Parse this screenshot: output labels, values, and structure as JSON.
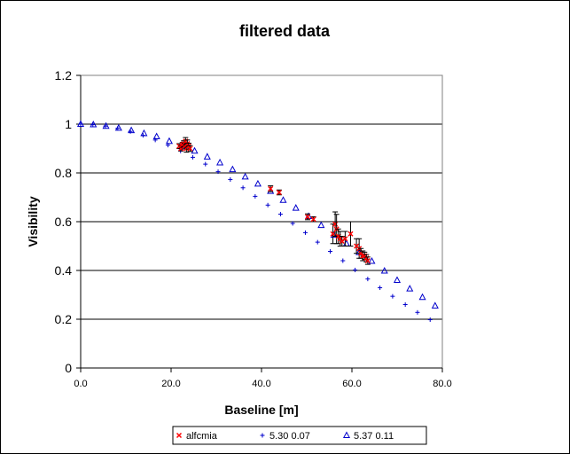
{
  "chart_data": {
    "type": "scatter",
    "title": "filtered data",
    "xlabel": "Baseline [m]",
    "ylabel": "Visibility",
    "xlim": [
      0,
      80
    ],
    "ylim": [
      0,
      1.2
    ],
    "xticks": [
      "0.0",
      "20.0",
      "40.0",
      "60.0",
      "80.0"
    ],
    "xtick_values": [
      0,
      20,
      40,
      60,
      80
    ],
    "yticks": [
      "0",
      "0.2",
      "0.4",
      "0.6",
      "0.8",
      "1",
      "1.2"
    ],
    "ytick_values": [
      0,
      0.2,
      0.4,
      0.6,
      0.8,
      1.0,
      1.2
    ],
    "grid": "horizontal",
    "legend": "bottom",
    "series": [
      {
        "name": "alfcmia",
        "marker": "x",
        "color": "#ff0000",
        "x": [
          21.8,
          22.2,
          22.5,
          22.8,
          23.0,
          23.2,
          23.4,
          23.6,
          23.9,
          24.2,
          42.0,
          43.9,
          50.2,
          51.5,
          55.8,
          56.3,
          56.6,
          57.0,
          57.4,
          57.8,
          58.5,
          59.7,
          61.0,
          61.6,
          62.0,
          62.4,
          62.8,
          63.2,
          63.5
        ],
        "y": [
          0.91,
          0.9,
          0.915,
          0.92,
          0.91,
          0.93,
          0.9,
          0.92,
          0.91,
          0.9,
          0.735,
          0.72,
          0.62,
          0.61,
          0.55,
          0.59,
          0.57,
          0.54,
          0.53,
          0.52,
          0.53,
          0.55,
          0.5,
          0.49,
          0.47,
          0.46,
          0.46,
          0.45,
          0.44
        ],
        "err": [
          0.01,
          0.01,
          0.01,
          0.012,
          0.012,
          0.015,
          0.015,
          0.015,
          0.012,
          0.012,
          0.012,
          0.01,
          0.012,
          0.01,
          0.04,
          0.05,
          0.06,
          0.03,
          0.03,
          0.02,
          0.03,
          0.05,
          0.03,
          0.04,
          0.02,
          0.02,
          0.015,
          0.015,
          0.015
        ]
      },
      {
        "name": "5.30 0.07",
        "marker": "+",
        "color": "#0000cc",
        "x": [
          0,
          2.7,
          5.5,
          8.2,
          11.0,
          13.8,
          16.5,
          19.3,
          22.1,
          24.8,
          27.6,
          30.4,
          33.1,
          35.9,
          38.6,
          41.4,
          44.2,
          46.9,
          49.7,
          52.4,
          55.2,
          58.0,
          60.7,
          63.5,
          66.2,
          69.0,
          71.8,
          74.5,
          77.3
        ],
        "y": [
          1.0,
          0.998,
          0.992,
          0.983,
          0.97,
          0.954,
          0.935,
          0.914,
          0.89,
          0.864,
          0.836,
          0.805,
          0.773,
          0.739,
          0.704,
          0.668,
          0.631,
          0.593,
          0.555,
          0.516,
          0.478,
          0.44,
          0.402,
          0.365,
          0.329,
          0.294,
          0.26,
          0.228,
          0.198
        ]
      },
      {
        "name": "5.37 0.11",
        "marker": "triangle",
        "color": "#0000cc",
        "x": [
          0,
          2.8,
          5.6,
          8.4,
          11.2,
          14.0,
          16.8,
          19.6,
          22.4,
          25.2,
          28.0,
          30.8,
          33.6,
          36.4,
          39.2,
          42.0,
          44.8,
          47.6,
          50.4,
          53.2,
          56.0,
          58.8,
          61.6,
          64.4,
          67.2,
          70.0,
          72.8,
          75.6,
          78.4
        ],
        "y": [
          1.0,
          0.998,
          0.992,
          0.984,
          0.974,
          0.962,
          0.949,
          0.93,
          0.908,
          0.89,
          0.866,
          0.842,
          0.814,
          0.784,
          0.755,
          0.725,
          0.688,
          0.656,
          0.622,
          0.585,
          0.545,
          0.51,
          0.474,
          0.438,
          0.398,
          0.36,
          0.325,
          0.29,
          0.255
        ]
      }
    ]
  }
}
